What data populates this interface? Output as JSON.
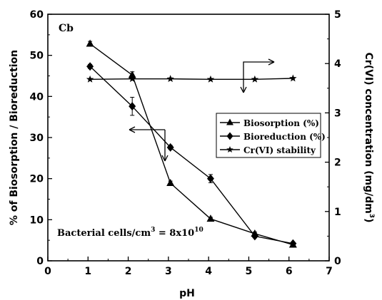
{
  "chart_data": {
    "type": "line",
    "panel_label": "Cb",
    "xlabel": "pH",
    "ylabel": "% of Biosorption / Bioreduction",
    "y2label_main": "Cr(VI) concentration (mg/dm",
    "y2label_sup": "3",
    "y2label_end": ")",
    "xlim": [
      0,
      7
    ],
    "ylim": [
      0,
      60
    ],
    "y2lim": [
      0,
      5
    ],
    "xticks": [
      0,
      1,
      2,
      3,
      4,
      5,
      6,
      7
    ],
    "yticks": [
      0,
      10,
      20,
      30,
      40,
      50,
      60
    ],
    "y2ticks": [
      0,
      1,
      2,
      3,
      4,
      5
    ],
    "annotation": {
      "prefix": "Bacterial cells/cm",
      "prefix_sup": "3",
      "middle": " = 8x10",
      "middle_sup": "10"
    },
    "legend_position": "center-right",
    "series": [
      {
        "name": "Biosorption (%)",
        "marker": "triangle",
        "axis": "left",
        "x": [
          1.05,
          2.1,
          3.05,
          4.05,
          5.15,
          6.1
        ],
        "y": [
          52.8,
          45.2,
          18.9,
          10.2,
          6.6,
          3.9
        ],
        "err": [
          0.6,
          0.8,
          0.5,
          0.4,
          0.4,
          0.3
        ]
      },
      {
        "name": "Bioreduction (%)",
        "marker": "diamond",
        "axis": "left",
        "x": [
          1.05,
          2.1,
          3.05,
          4.05,
          5.15,
          6.1
        ],
        "y": [
          47.3,
          37.6,
          27.6,
          20.0,
          6.0,
          4.2
        ],
        "err": [
          0.5,
          2.2,
          0.5,
          1.0,
          0.4,
          0.3
        ]
      },
      {
        "name": "Cr(VI) stability",
        "marker": "star",
        "axis": "right",
        "x": [
          1.05,
          2.1,
          3.05,
          4.05,
          5.15,
          6.1
        ],
        "y": [
          3.68,
          3.69,
          3.69,
          3.68,
          3.68,
          3.7
        ],
        "err": [
          0,
          0,
          0,
          0,
          0,
          0
        ]
      }
    ]
  }
}
